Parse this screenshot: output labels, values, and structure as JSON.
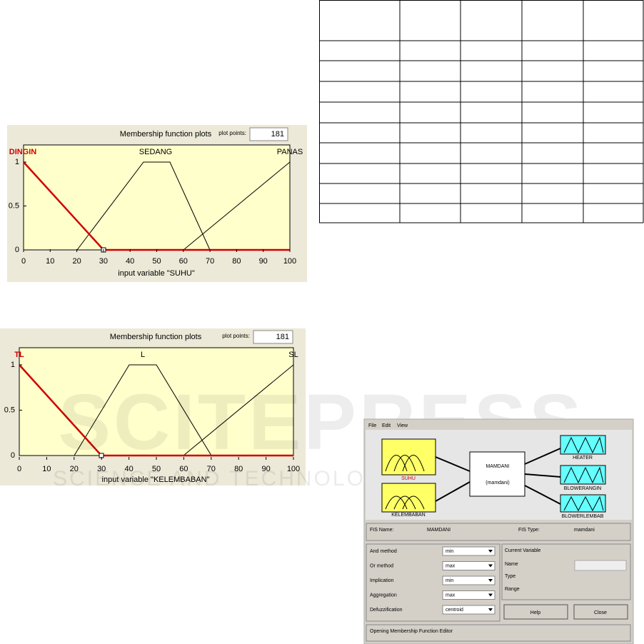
{
  "plots": [
    {
      "title": "Membership function plots",
      "plot_points_label": "plot points:",
      "plot_points": "181",
      "mf_labels": [
        "DINGIN",
        "SEDANG",
        "PANAS"
      ],
      "yticks": [
        0,
        0.5,
        1
      ],
      "xticks": [
        0,
        10,
        20,
        30,
        40,
        50,
        60,
        70,
        80,
        90,
        100
      ],
      "xlabel": "input variable \"SUHU\""
    },
    {
      "title": "Membership function plots",
      "plot_points_label": "plot points:",
      "plot_points": "181",
      "mf_labels": [
        "TL",
        "L",
        "SL"
      ],
      "yticks": [
        0,
        0.5,
        1
      ],
      "xticks": [
        0,
        10,
        20,
        30,
        40,
        50,
        60,
        70,
        80,
        90,
        100
      ],
      "xlabel": "input variable \"KELEMBABAN\""
    }
  ],
  "fis_editor": {
    "menu": [
      "File",
      "Edit",
      "View"
    ],
    "inputs": [
      "SUHU",
      "KELEMBABAN"
    ],
    "system": {
      "name": "MAMDANI",
      "type": "(mamdani)"
    },
    "outputs": [
      "HEATER",
      "BLOWERANGIN",
      "BLOWERLEMBAB"
    ],
    "fis_name_label": "FIS Name:",
    "fis_name": "MAMDANI",
    "fis_type_label": "FIS Type:",
    "fis_type": "mamdani",
    "methods": [
      {
        "label": "And method",
        "value": "min"
      },
      {
        "label": "Or method",
        "value": "max"
      },
      {
        "label": "Implication",
        "value": "min"
      },
      {
        "label": "Aggregation",
        "value": "max"
      },
      {
        "label": "Defuzzification",
        "value": "centroid"
      }
    ],
    "current_variable": {
      "title": "Current Variable",
      "fields": [
        "Name",
        "Type",
        "Range"
      ]
    },
    "buttons": [
      "Help",
      "Close"
    ],
    "status": "Opening Membership Function Editor"
  },
  "watermark": {
    "main": "SCITEPRESS",
    "sub": "SCIENCE AND TECHNOLOGY PUBLICATIONS"
  }
}
